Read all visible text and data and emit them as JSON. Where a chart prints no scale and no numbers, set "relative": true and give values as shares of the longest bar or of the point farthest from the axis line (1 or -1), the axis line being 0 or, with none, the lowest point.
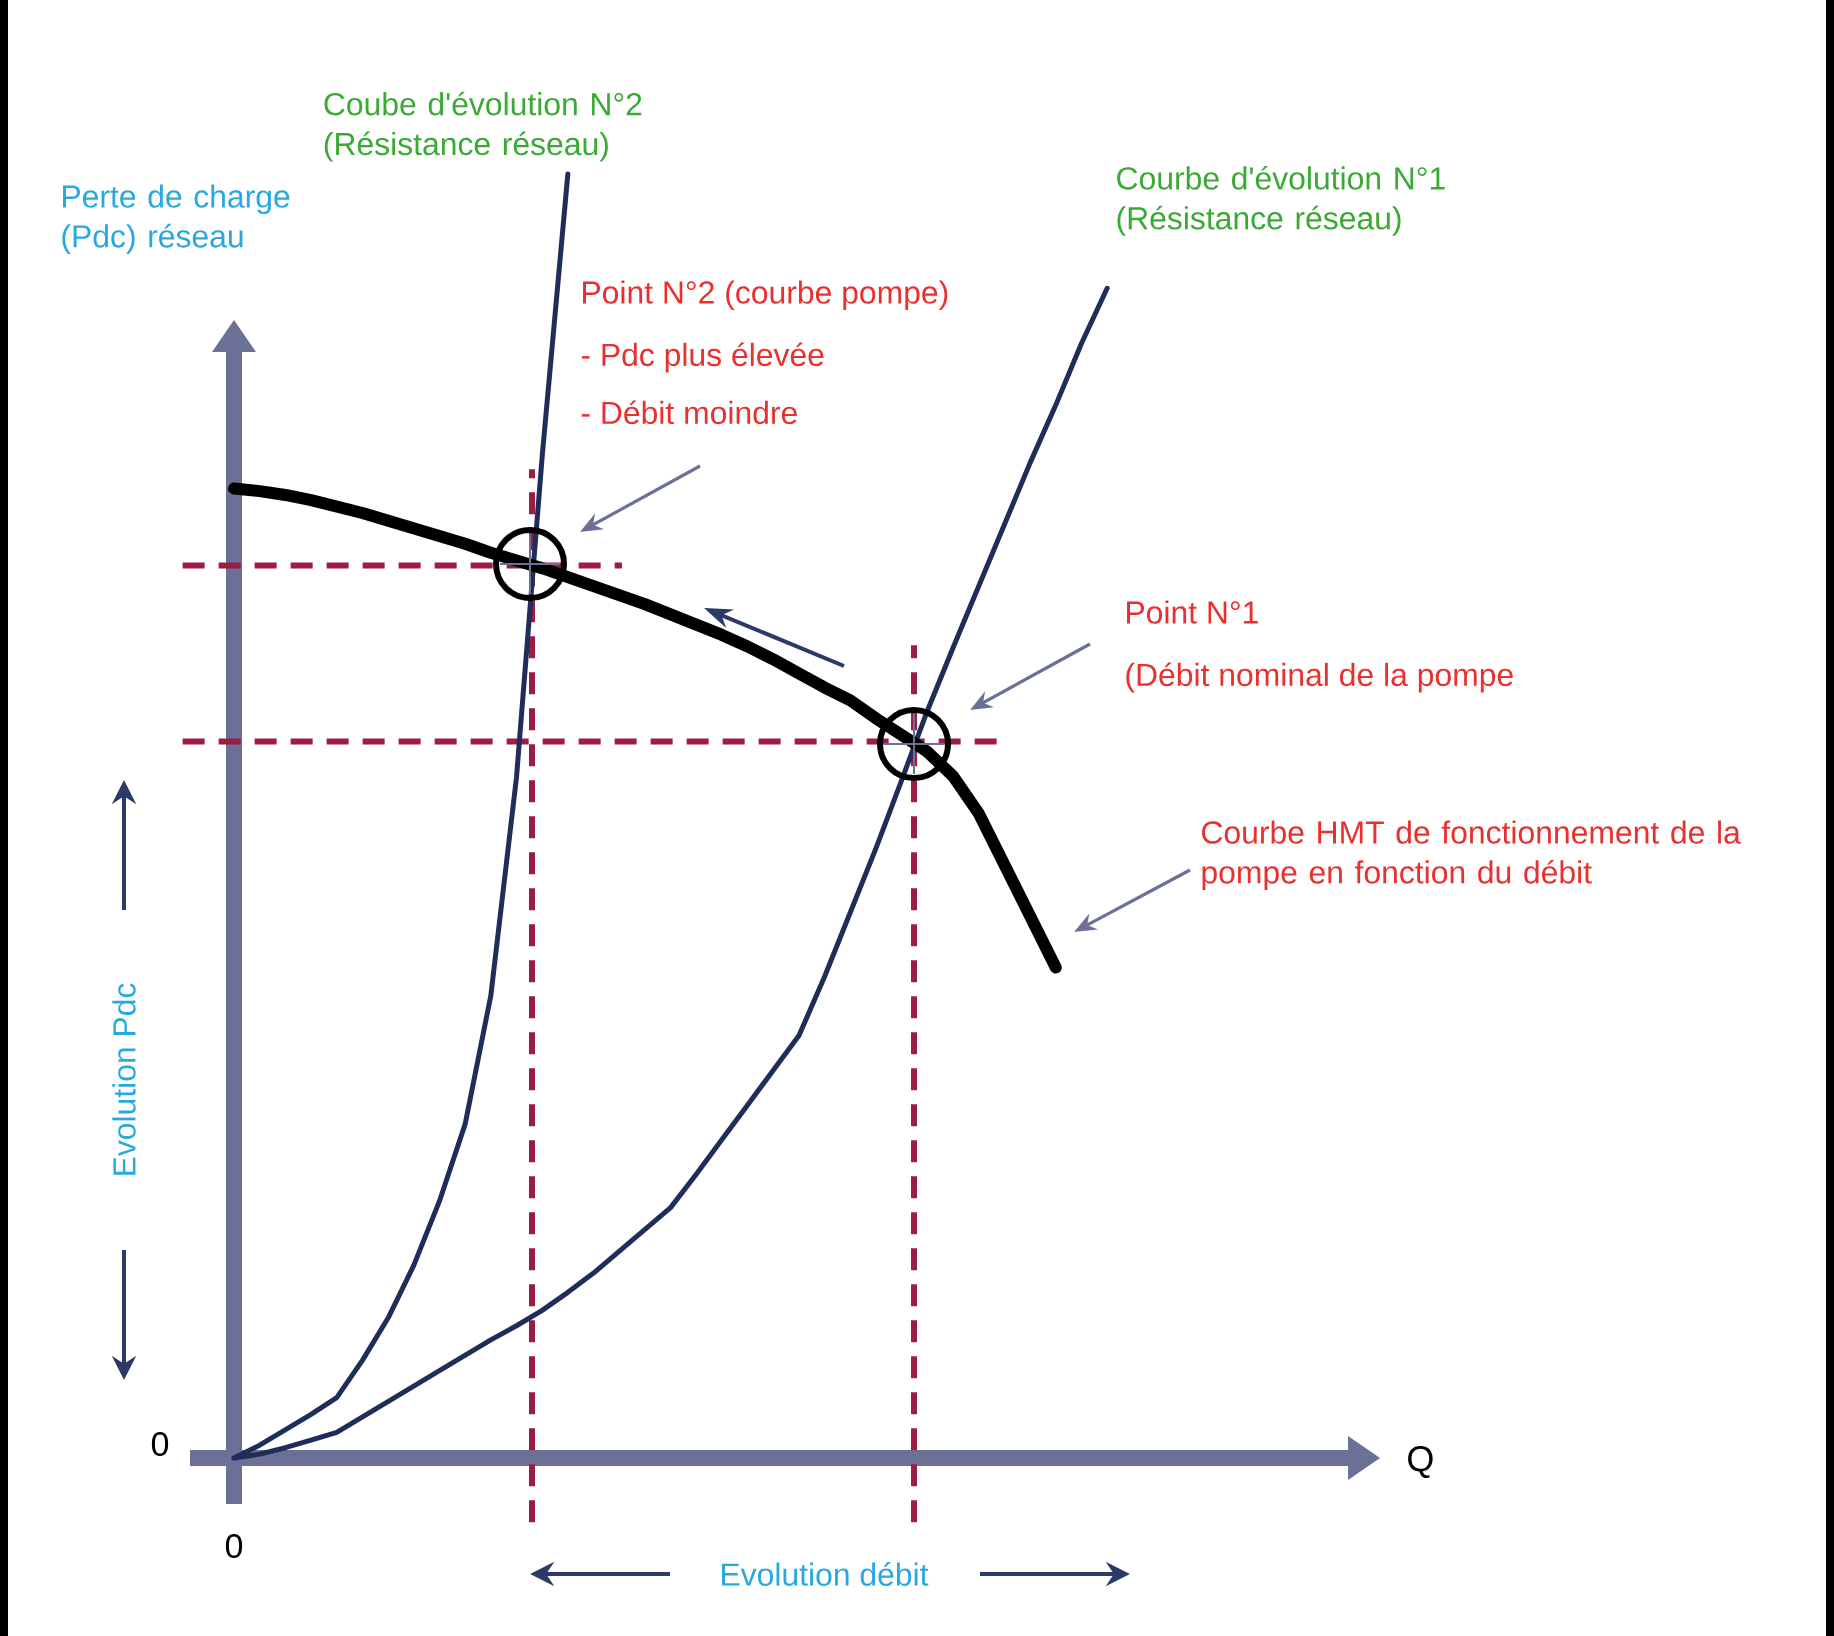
{
  "chart_data": {
    "type": "line",
    "relative": true,
    "ylabel": "Perte de charge (Pdc) réseau",
    "categories": [
      null,
      null,
      null,
      null,
      null,
      null,
      null,
      null,
      null,
      null,
      null,
      null,
      null,
      null,
      null,
      null,
      null,
      null,
      null,
      null,
      null,
      null,
      null,
      null,
      null,
      null,
      null,
      null,
      null,
      null,
      null,
      null,
      null,
      null,
      null
    ],
    "series": [
      {
        "name": "Coube d'évolution N°2 (Résistance réseau)",
        "color": "#1f2d5a",
        "values": [
          0,
          0.01,
          0.022,
          0.034,
          0.047,
          0.076,
          0.109,
          0.15,
          0.2,
          0.26,
          0.36,
          0.53,
          0.78,
          1.0,
          null,
          null,
          null,
          null,
          null,
          null,
          null,
          null,
          null,
          null,
          null,
          null,
          null,
          null,
          null,
          null,
          null,
          null,
          null,
          null,
          null
        ]
      },
      {
        "name": "Courbe d'évolution N°1 (Résistance réseau)",
        "color": "#1f2d5a",
        "values": [
          0,
          0.003,
          0.008,
          0.014,
          0.02,
          0.032,
          0.044,
          0.056,
          0.068,
          0.08,
          0.092,
          0.103,
          0.115,
          0.129,
          0.144,
          0.161,
          0.178,
          0.195,
          0.221,
          0.248,
          0.275,
          0.302,
          0.329,
          0.375,
          0.425,
          0.475,
          0.528,
          0.582,
          0.631,
          0.679,
          0.727,
          0.775,
          0.82,
          0.868,
          0.911
        ]
      },
      {
        "color": "#000000",
        "values": [
          0.755,
          0.753,
          0.75,
          0.746,
          0.741,
          0.736,
          0.73,
          0.724,
          0.718,
          0.712,
          0.705,
          0.699,
          0.693,
          0.686,
          0.679,
          0.672,
          0.665,
          0.657,
          0.649,
          0.641,
          0.632,
          0.622,
          0.611,
          0.6,
          0.59,
          0.576,
          0.563,
          0.55,
          0.531,
          0.502,
          0.462,
          0.422,
          0.382,
          null,
          null
        ]
      }
    ],
    "ref_lines": [
      {
        "axis": "y",
        "value": 0.695,
        "color": "#9b1d42",
        "line_style": "dashed"
      },
      {
        "axis": "y",
        "value": 0.558,
        "color": "#9b1d42",
        "line_style": "dashed"
      }
    ],
    "annotations": [
      "Point N°2 (courbe pompe)",
      "- Pdc plus élevée",
      "- Débit moindre",
      "Point N°1",
      "(Débit nominal de la pompe",
      "Courbe HMT de fonctionnement de la pompe en fonction du débit",
      "Evolution Pdc",
      "Evolution débit",
      "0",
      "0",
      "Q"
    ]
  }
}
